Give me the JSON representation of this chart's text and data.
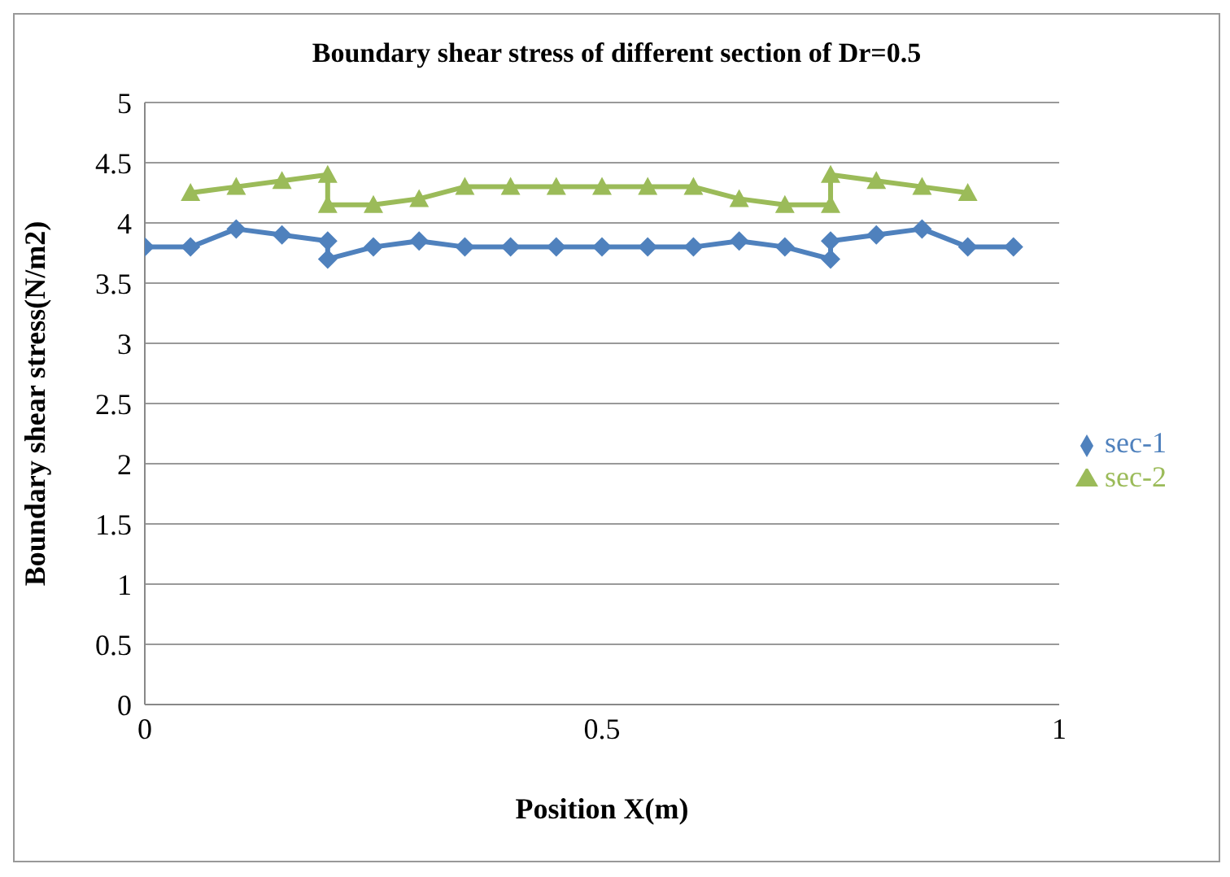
{
  "chart_data": {
    "type": "line",
    "title": "Boundary shear stress of different section of Dr=0.5",
    "xlabel": "Position X(m)",
    "ylabel": "Boundary shear stress(N/m2)",
    "xlim": [
      0,
      1
    ],
    "xticks": [
      0,
      0.5,
      1
    ],
    "ylim": [
      0,
      5
    ],
    "yticks": [
      0,
      0.5,
      1,
      1.5,
      2,
      2.5,
      3,
      3.5,
      4,
      4.5,
      5
    ],
    "grid": "y",
    "legend": "right",
    "series": [
      {
        "name": "sec-2",
        "color": "#9bbb59",
        "marker": "triangle",
        "x": [
          0.05,
          0.1,
          0.15,
          0.2,
          0.2,
          0.25,
          0.3,
          0.35,
          0.4,
          0.45,
          0.5,
          0.55,
          0.6,
          0.65,
          0.7,
          0.75,
          0.75,
          0.8,
          0.85,
          0.9
        ],
        "values": [
          4.25,
          4.3,
          4.35,
          4.4,
          4.15,
          4.15,
          4.2,
          4.3,
          4.3,
          4.3,
          4.3,
          4.3,
          4.3,
          4.2,
          4.15,
          4.15,
          4.4,
          4.35,
          4.3,
          4.25
        ]
      },
      {
        "name": "sec-1",
        "color": "#4f81bd",
        "marker": "diamond",
        "x": [
          0,
          0.05,
          0.1,
          0.15,
          0.2,
          0.2,
          0.25,
          0.3,
          0.35,
          0.4,
          0.45,
          0.5,
          0.55,
          0.6,
          0.65,
          0.7,
          0.75,
          0.75,
          0.8,
          0.85,
          0.9,
          0.95
        ],
        "values": [
          3.8,
          3.8,
          3.95,
          3.9,
          3.85,
          3.7,
          3.8,
          3.85,
          3.8,
          3.8,
          3.8,
          3.8,
          3.8,
          3.8,
          3.85,
          3.8,
          3.7,
          3.85,
          3.9,
          3.95,
          3.8,
          3.8
        ]
      }
    ]
  }
}
